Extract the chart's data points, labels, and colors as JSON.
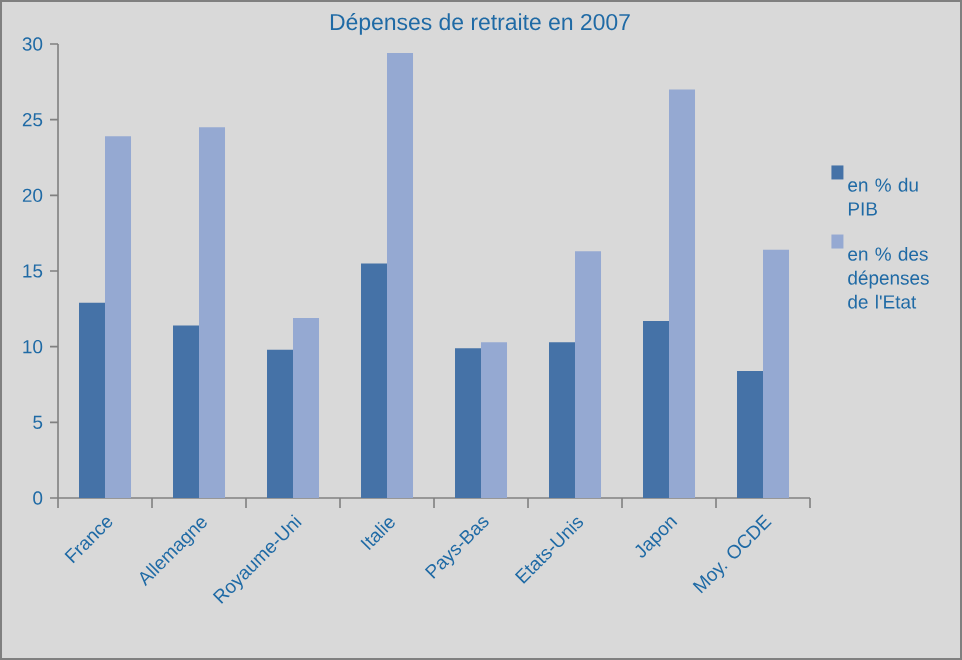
{
  "chart_data": {
    "type": "bar",
    "title": "Dépenses de retraite en 2007",
    "categories": [
      "France",
      "Allemagne",
      "Royaume-Uni",
      "Italie",
      "Pays-Bas",
      "Etats-Unis",
      "Japon",
      "Moy. OCDE"
    ],
    "series": [
      {
        "name": "en % du PIB",
        "color": "#4572a7",
        "values": [
          12.9,
          11.4,
          9.8,
          15.5,
          9.9,
          10.3,
          11.7,
          8.4
        ]
      },
      {
        "name": "en % des dépenses de l'Etat",
        "color": "#95a9d2",
        "values": [
          23.9,
          24.5,
          11.9,
          29.4,
          10.3,
          16.3,
          27.0,
          16.4
        ]
      }
    ],
    "ylim": [
      0,
      30
    ],
    "yticks": [
      0,
      5,
      10,
      15,
      20,
      25,
      30
    ],
    "grid": false,
    "legend": "right"
  }
}
